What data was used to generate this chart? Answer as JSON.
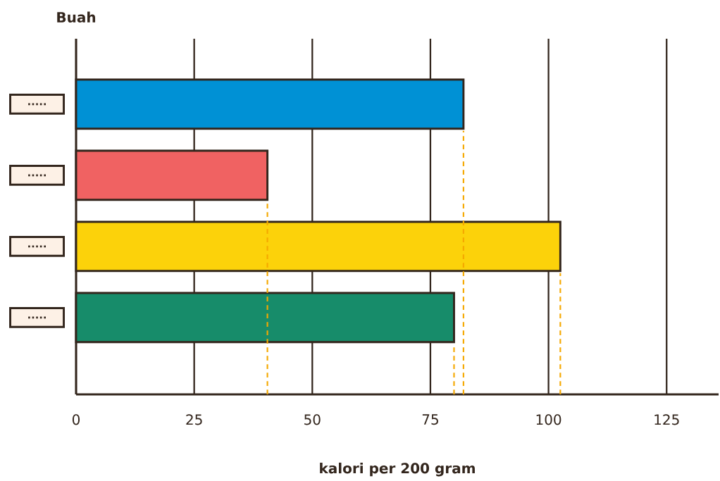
{
  "chart_data": {
    "type": "bar",
    "orientation": "horizontal",
    "ylabel": "Buah",
    "xlabel": "kalori per 200 gram",
    "categories": [
      ".....",
      ".....",
      ".....",
      "....."
    ],
    "values": [
      82,
      40.5,
      102.5,
      80
    ],
    "colors": [
      "#0091d5",
      "#f06262",
      "#fcd20a",
      "#178c6a"
    ],
    "xlim": [
      0,
      136
    ],
    "xticks": [
      0,
      25,
      50,
      75,
      100,
      125
    ],
    "grid": "x",
    "ref_lines": [
      {
        "axis": "x",
        "value": 82,
        "color": "#f5a800",
        "line_style": "dashed"
      },
      {
        "axis": "x",
        "value": 40.5,
        "color": "#f5a800",
        "line_style": "dashed"
      },
      {
        "axis": "x",
        "value": 102.5,
        "color": "#f5a800",
        "line_style": "dashed"
      },
      {
        "axis": "x",
        "value": 80,
        "color": "#f5a800",
        "line_style": "dashed"
      }
    ]
  }
}
